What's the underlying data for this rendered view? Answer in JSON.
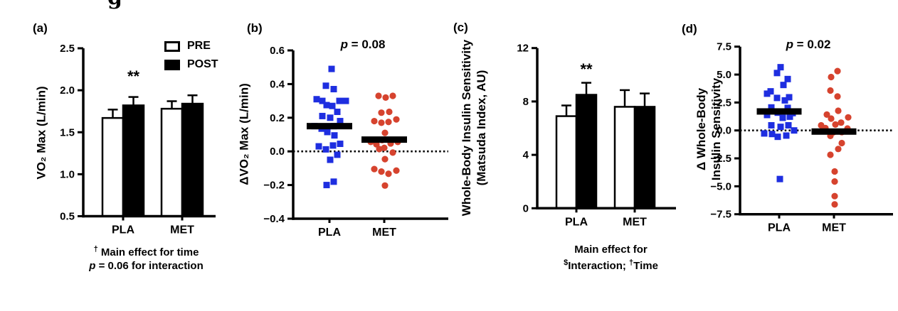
{
  "figure": {
    "top_fragment": "g"
  },
  "chart_data": [
    {
      "id": "a",
      "panel_label": "(a)",
      "type": "bar",
      "ylabel": "VO₂ Max (L/min)",
      "ylim": [
        0.5,
        2.5
      ],
      "yticks": [
        {
          "v": 0.5,
          "label": "0.5"
        },
        {
          "v": 1.0,
          "label": "1.0"
        },
        {
          "v": 1.5,
          "label": "1.5"
        },
        {
          "v": 2.0,
          "label": "2.0"
        },
        {
          "v": 2.5,
          "label": "2.5"
        }
      ],
      "categories": [
        "PLA",
        "MET"
      ],
      "series": [
        {
          "name": "PRE",
          "fill": "#ffffff",
          "values": [
            1.67,
            1.78
          ],
          "errors": [
            0.1,
            0.09
          ]
        },
        {
          "name": "POST",
          "fill": "#000000",
          "values": [
            1.82,
            1.84
          ],
          "errors": [
            0.1,
            0.1
          ]
        }
      ],
      "significance": {
        "text": "**",
        "category": 0,
        "series": 1
      },
      "footnote": {
        "sup": "†",
        "text": " Main effect for time",
        "p": "p",
        "rest": " = 0.06 for interaction"
      }
    },
    {
      "id": "b",
      "panel_label": "(b)",
      "type": "scatter",
      "ylabel": "ΔVO₂ Max (L/min)",
      "ylim": [
        -0.4,
        0.6
      ],
      "yticks": [
        {
          "v": 0.6,
          "label": "0.6"
        },
        {
          "v": 0.4,
          "label": "0.4"
        },
        {
          "v": 0.2,
          "label": "0.2"
        },
        {
          "v": 0.0,
          "label": "0.0"
        },
        {
          "v": -0.2,
          "label": "−0.2"
        },
        {
          "v": -0.4,
          "label": "−0.4"
        }
      ],
      "zero_line": true,
      "p_annotation": {
        "italic": "p",
        "rest": " = 0.08"
      },
      "groups": [
        {
          "name": "PLA",
          "marker": "square",
          "color": "#1e2ee0",
          "mean": 0.15,
          "points": [
            [
              3,
              0.49
            ],
            [
              -5,
              0.39
            ],
            [
              6,
              0.37
            ],
            [
              -18,
              0.31
            ],
            [
              -10,
              0.3
            ],
            [
              14,
              0.3
            ],
            [
              23,
              0.3
            ],
            [
              -4,
              0.275
            ],
            [
              4,
              0.27
            ],
            [
              11,
              0.235
            ],
            [
              -10,
              0.21
            ],
            [
              1,
              0.2
            ],
            [
              15,
              0.18
            ],
            [
              -21,
              0.15
            ],
            [
              -11,
              0.135
            ],
            [
              6,
              0.15
            ],
            [
              -3,
              0.115
            ],
            [
              7,
              0.095
            ],
            [
              -15,
              0.03
            ],
            [
              5,
              0.035
            ],
            [
              15,
              0.045
            ],
            [
              -5,
              0.012
            ],
            [
              11,
              -0.02
            ],
            [
              1,
              -0.05
            ],
            [
              6,
              -0.18
            ],
            [
              -4,
              -0.2
            ]
          ]
        },
        {
          "name": "MET",
          "marker": "circle",
          "color": "#d6432e",
          "mean": 0.07,
          "points": [
            [
              -8,
              0.33
            ],
            [
              2,
              0.32
            ],
            [
              12,
              0.33
            ],
            [
              -4,
              0.23
            ],
            [
              7,
              0.235
            ],
            [
              -14,
              0.18
            ],
            [
              -4,
              0.17
            ],
            [
              6,
              0.175
            ],
            [
              17,
              0.19
            ],
            [
              1,
              0.11
            ],
            [
              -3,
              0.067
            ],
            [
              -19,
              0.056
            ],
            [
              -11,
              0.042
            ],
            [
              9,
              0.047
            ],
            [
              19,
              0.056
            ],
            [
              -7,
              0.014
            ],
            [
              0,
              0.021
            ],
            [
              12,
              -0.007
            ],
            [
              1,
              -0.046
            ],
            [
              -14,
              -0.105
            ],
            [
              -4,
              -0.12
            ],
            [
              6,
              -0.133
            ],
            [
              17,
              -0.114
            ],
            [
              1,
              -0.203
            ]
          ]
        }
      ]
    },
    {
      "id": "c",
      "panel_label": "(c)",
      "type": "bar",
      "ylabel_line1": "Whole-Body Insulin Sensitivity",
      "ylabel_line2": "(Matsuda Index, AU)",
      "ylim": [
        0,
        12
      ],
      "yticks": [
        {
          "v": 0,
          "label": "0"
        },
        {
          "v": 4,
          "label": "4"
        },
        {
          "v": 8,
          "label": "8"
        },
        {
          "v": 12,
          "label": "12"
        }
      ],
      "categories": [
        "PLA",
        "MET"
      ],
      "series": [
        {
          "name": "PRE",
          "fill": "#ffffff",
          "values": [
            6.9,
            7.6
          ],
          "errors": [
            0.8,
            1.25
          ]
        },
        {
          "name": "POST",
          "fill": "#000000",
          "values": [
            8.5,
            7.6
          ],
          "errors": [
            0.9,
            1.0
          ]
        }
      ],
      "significance": {
        "text": "**",
        "category": 0,
        "series": 1
      },
      "footnote": {
        "text1": "Main effect for",
        "sup1": "$",
        "text2": "Interaction; ",
        "sup2": "†",
        "text3": "Time"
      }
    },
    {
      "id": "d",
      "panel_label": "(d)",
      "type": "scatter",
      "ylabel_line1": "Δ Whole-Body",
      "ylabel_line2": "Insulin Sensitivity",
      "ylim": [
        -7.5,
        7.5
      ],
      "yticks": [
        {
          "v": 7.5,
          "label": "7.5"
        },
        {
          "v": 5.0,
          "label": "5.0"
        },
        {
          "v": 2.5,
          "label": "2.5"
        },
        {
          "v": 0.0,
          "label": "0.0"
        },
        {
          "v": -2.5,
          "label": "−2.5"
        },
        {
          "v": -5.0,
          "label": "−5.0"
        },
        {
          "v": -7.5,
          "label": "−7.5"
        }
      ],
      "zero_line": true,
      "p_annotation": {
        "italic": "p",
        "rest": " = 0.02"
      },
      "groups": [
        {
          "name": "PLA",
          "marker": "square",
          "color": "#1e2ee0",
          "mean": 1.7,
          "points": [
            [
              2,
              5.66
            ],
            [
              -3,
              5.14
            ],
            [
              12,
              4.6
            ],
            [
              6,
              4.07
            ],
            [
              -12,
              3.5
            ],
            [
              -17,
              3.29
            ],
            [
              14,
              2.97
            ],
            [
              -3,
              2.91
            ],
            [
              8,
              2.69
            ],
            [
              -11,
              2.06
            ],
            [
              12,
              2.02
            ],
            [
              -2,
              1.59
            ],
            [
              19,
              1.55
            ],
            [
              -17,
              1.38
            ],
            [
              15,
              1.23
            ],
            [
              5,
              1.13
            ],
            [
              -11,
              0.46
            ],
            [
              13,
              0.46
            ],
            [
              2,
              0.32
            ],
            [
              21,
              0.0
            ],
            [
              -21,
              -0.27
            ],
            [
              -10,
              -0.32
            ],
            [
              10,
              -0.46
            ],
            [
              -2,
              -0.57
            ],
            [
              1,
              -4.35
            ]
          ]
        },
        {
          "name": "MET",
          "marker": "circle",
          "color": "#d6432e",
          "mean": -0.1,
          "points": [
            [
              5,
              5.31
            ],
            [
              -4,
              4.78
            ],
            [
              -5,
              3.57
            ],
            [
              5,
              3.04
            ],
            [
              6,
              1.76
            ],
            [
              -10,
              1.42
            ],
            [
              20,
              1.17
            ],
            [
              -4,
              1.06
            ],
            [
              10,
              0.7
            ],
            [
              2,
              0.53
            ],
            [
              -18,
              0.46
            ],
            [
              -12,
              0.21
            ],
            [
              19,
              0.17
            ],
            [
              11,
              -0.15
            ],
            [
              -1,
              -0.17
            ],
            [
              -5,
              -0.49
            ],
            [
              11,
              -1.13
            ],
            [
              6,
              -1.66
            ],
            [
              -5,
              -2.18
            ],
            [
              1,
              -3.67
            ],
            [
              1,
              -4.57
            ],
            [
              1,
              -5.88
            ],
            [
              1,
              -6.62
            ]
          ]
        }
      ]
    }
  ]
}
